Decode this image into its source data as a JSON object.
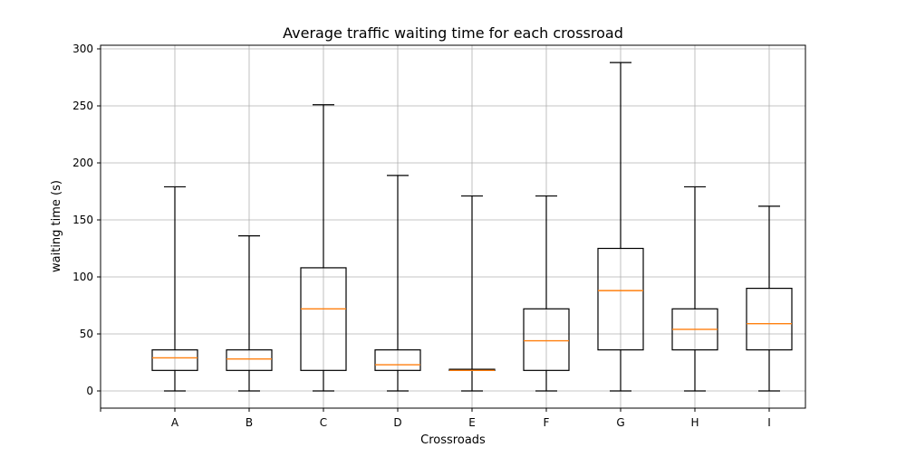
{
  "chart_data": {
    "type": "box",
    "title": "Average traffic waiting time for each crossroad",
    "xlabel": "Crossroads",
    "ylabel": "waiting time (s)",
    "ylim": [
      -15,
      303
    ],
    "yticks": [
      0,
      50,
      100,
      150,
      200,
      250,
      300
    ],
    "grid": true,
    "categories": [
      "A",
      "B",
      "C",
      "D",
      "E",
      "F",
      "G",
      "H",
      "I"
    ],
    "boxes": [
      {
        "label": "A",
        "whisker_low": 0,
        "q1": 18,
        "median": 29,
        "q3": 36,
        "whisker_high": 179
      },
      {
        "label": "B",
        "whisker_low": 0,
        "q1": 18,
        "median": 28,
        "q3": 36,
        "whisker_high": 136
      },
      {
        "label": "C",
        "whisker_low": 0,
        "q1": 18,
        "median": 72,
        "q3": 108,
        "whisker_high": 251
      },
      {
        "label": "D",
        "whisker_low": 0,
        "q1": 18,
        "median": 23,
        "q3": 36,
        "whisker_high": 189
      },
      {
        "label": "E",
        "whisker_low": 0,
        "q1": 18,
        "median": 18,
        "q3": 19,
        "whisker_high": 171
      },
      {
        "label": "F",
        "whisker_low": 0,
        "q1": 18,
        "median": 44,
        "q3": 72,
        "whisker_high": 171
      },
      {
        "label": "G",
        "whisker_low": 0,
        "q1": 36,
        "median": 88,
        "q3": 125,
        "whisker_high": 288
      },
      {
        "label": "H",
        "whisker_low": 0,
        "q1": 36,
        "median": 54,
        "q3": 72,
        "whisker_high": 179
      },
      {
        "label": "I",
        "whisker_low": 0,
        "q1": 36,
        "median": 59,
        "q3": 90,
        "whisker_high": 162
      }
    ],
    "colors": {
      "box": "#000000",
      "median": "#ff7f0e",
      "grid": "#b0b0b0"
    }
  }
}
